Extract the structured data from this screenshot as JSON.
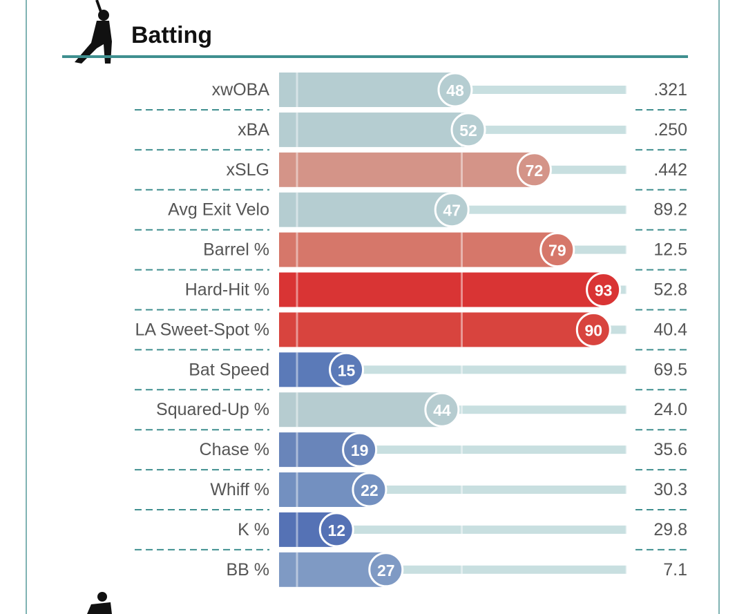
{
  "chart_data": {
    "type": "bar",
    "title": "Batting",
    "categories": [
      "xwOBA",
      "xBA",
      "xSLG",
      "Avg Exit Velo",
      "Barrel %",
      "Hard-Hit %",
      "LA Sweet-Spot %",
      "Bat Speed",
      "Squared-Up %",
      "Chase %",
      "Whiff %",
      "K %",
      "BB %"
    ],
    "values": [
      48,
      52,
      72,
      47,
      79,
      93,
      90,
      15,
      44,
      19,
      22,
      12,
      27
    ],
    "stats": [
      ".321",
      ".250",
      ".442",
      "89.2",
      "12.5",
      "52.8",
      "40.4",
      "69.5",
      "24.0",
      "35.6",
      "30.3",
      "29.8",
      "7.1"
    ],
    "colors": [
      "#b5cdd1",
      "#b5cdd1",
      "#d49488",
      "#b5cdd1",
      "#d6776a",
      "#d93434",
      "#d8443e",
      "#5b7ab8",
      "#b6ccd0",
      "#6985ba",
      "#7390c0",
      "#5572b5",
      "#7f9ac4"
    ],
    "xlim": [
      0,
      100
    ],
    "xticks": [
      0,
      50,
      100
    ],
    "grid": true
  }
}
